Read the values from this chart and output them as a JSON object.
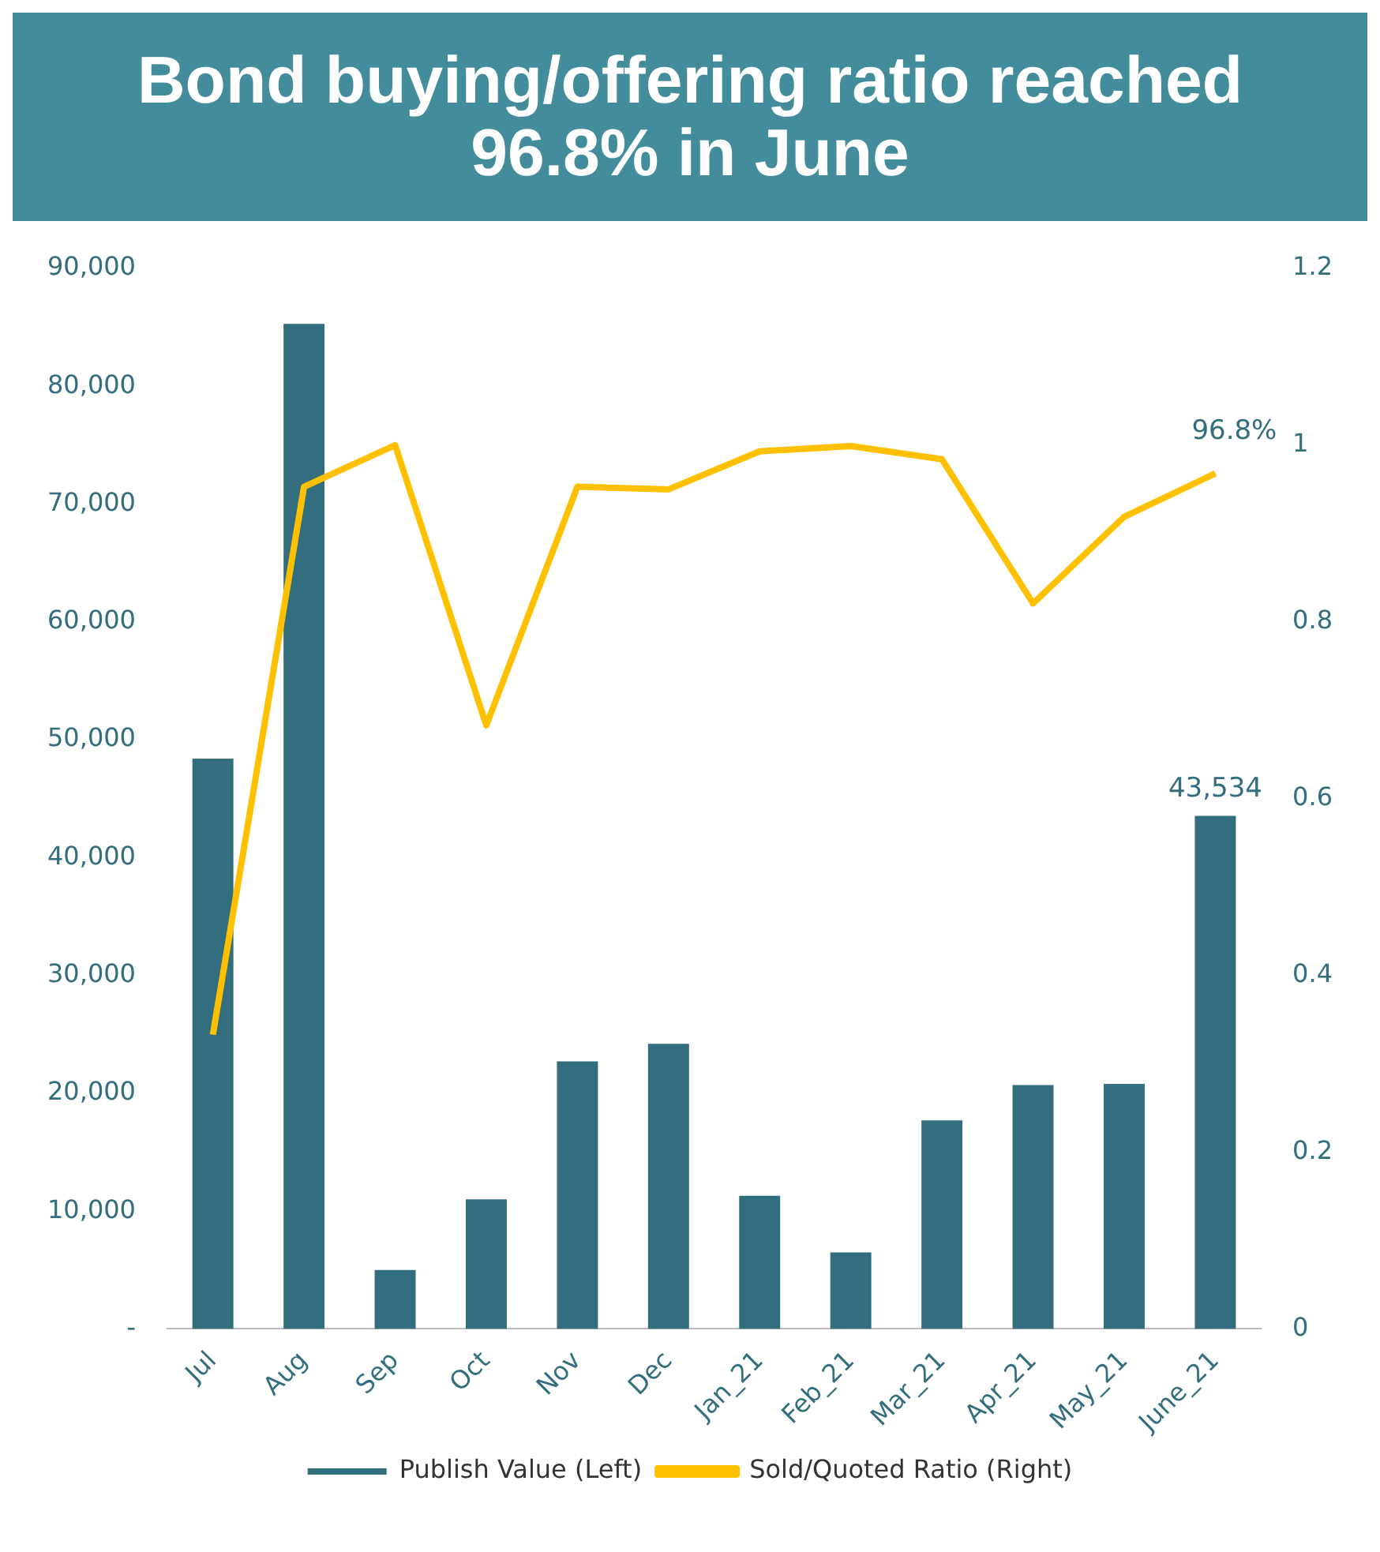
{
  "chart_data": {
    "type": "bar",
    "title": "Bond buying/offering ratio reached 96.8% in June",
    "categories": [
      "Jul",
      "Aug",
      "Sep",
      "Oct",
      "Nov",
      "Dec",
      "Jan_21",
      "Feb_21",
      "Mar_21",
      "Apr_21",
      "May_21",
      "June_21"
    ],
    "series": [
      {
        "name": "Publish Value (Left)",
        "color": "#336e7e",
        "values": [
          48400,
          85300,
          5000,
          11000,
          22700,
          24200,
          11300,
          6500,
          17700,
          20700,
          20800,
          43534
        ],
        "value_labels": [
          null,
          null,
          null,
          null,
          null,
          null,
          null,
          null,
          null,
          null,
          null,
          "43,534"
        ]
      },
      {
        "name": "Sold/Quoted Ratio (Right)",
        "type": "line",
        "axis": "y2",
        "color": "#ffc000",
        "marker": "none",
        "values": [
          0.333,
          0.953,
          1.0,
          0.683,
          0.953,
          0.95,
          0.993,
          0.999,
          0.984,
          0.821,
          0.919,
          0.968
        ],
        "value_labels": [
          null,
          null,
          null,
          null,
          null,
          null,
          null,
          null,
          null,
          null,
          null,
          "96.8%"
        ]
      }
    ],
    "ylim": [
      0,
      90000
    ],
    "yticks": [
      {
        "value": 0,
        "label": "-"
      },
      {
        "value": 10000,
        "label": "10,000"
      },
      {
        "value": 20000,
        "label": "20,000"
      },
      {
        "value": 30000,
        "label": "30,000"
      },
      {
        "value": 40000,
        "label": "40,000"
      },
      {
        "value": 50000,
        "label": "50,000"
      },
      {
        "value": 60000,
        "label": "60,000"
      },
      {
        "value": 70000,
        "label": "70,000"
      },
      {
        "value": 80000,
        "label": "80,000"
      },
      {
        "value": 90000,
        "label": "90,000"
      }
    ],
    "y2lim": [
      0,
      1.2
    ],
    "y2ticks": [
      0,
      0.2,
      0.4,
      0.6,
      0.8,
      1,
      1.2
    ],
    "grid": false,
    "legend": "bottom"
  }
}
